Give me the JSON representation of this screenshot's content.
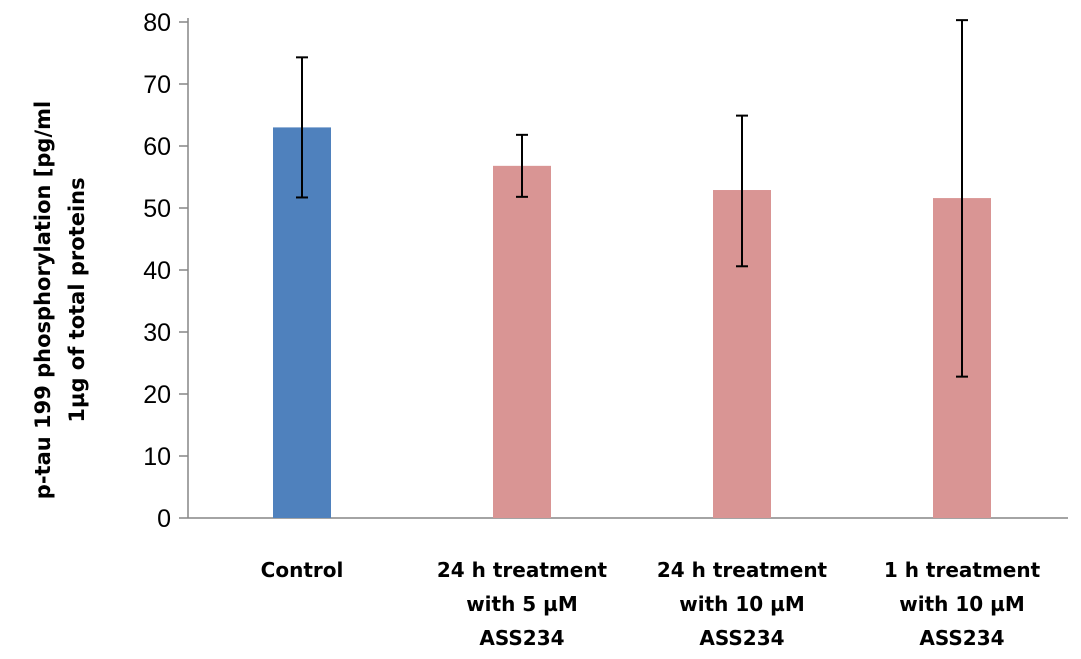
{
  "chart_data": {
    "type": "bar",
    "categories": [
      [
        "Control"
      ],
      [
        "24 h treatment",
        "with 5 µM",
        "ASS234"
      ],
      [
        "24 h treatment",
        "with 10 µM",
        "ASS234"
      ],
      [
        "1 h treatment",
        "with 10 µM",
        "ASS234"
      ]
    ],
    "values": [
      63,
      56.8,
      52.9,
      51.6
    ],
    "error_high": [
      74.3,
      61.8,
      64.9,
      80.3
    ],
    "error_low": [
      51.7,
      51.8,
      40.6,
      22.8
    ],
    "colors": [
      "#4f81bd",
      "#d99594",
      "#d99594",
      "#d99594"
    ],
    "ylabel": [
      "p-tau 199 phosphorylation [pg/ml",
      "1µg of total proteins"
    ],
    "ylim": [
      0,
      80
    ],
    "yticks": [
      0,
      10,
      20,
      30,
      40,
      50,
      60,
      70,
      80
    ],
    "grid": false,
    "legend": "none"
  }
}
